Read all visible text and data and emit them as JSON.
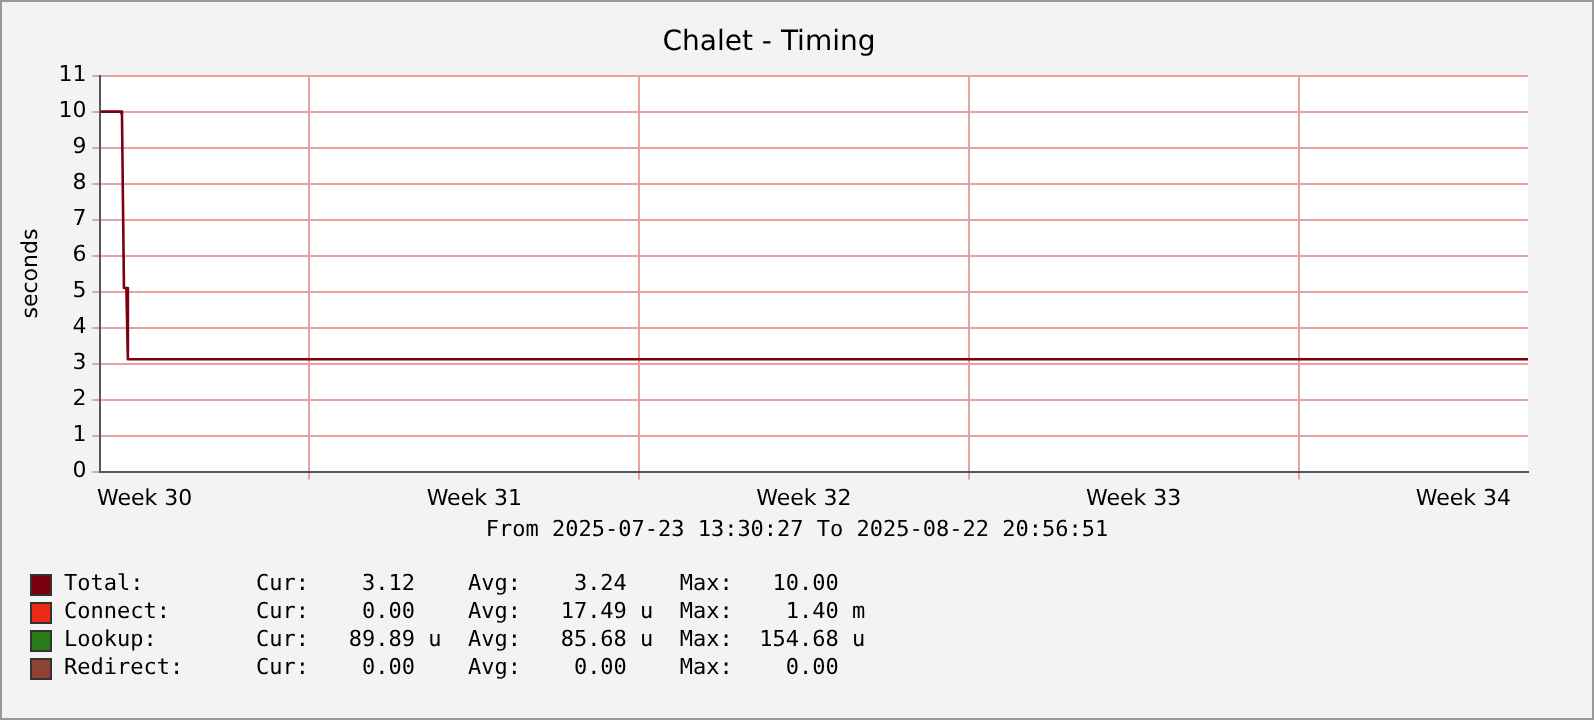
{
  "chart_data": {
    "type": "line",
    "title": "Chalet - Timing",
    "ylabel": "seconds",
    "xlim": [
      "2025-07-23T13:30",
      "2025-08-22T20:56"
    ],
    "xticks": [
      {
        "value": "2025-07-24T12:00",
        "label": "Week 30"
      },
      {
        "value": "2025-07-28",
        "label": null
      },
      {
        "value": "2025-07-31T12:00",
        "label": "Week 31"
      },
      {
        "value": "2025-08-04",
        "label": null
      },
      {
        "value": "2025-08-07T12:00",
        "label": "Week 32"
      },
      {
        "value": "2025-08-11",
        "label": null
      },
      {
        "value": "2025-08-14T12:00",
        "label": "Week 33"
      },
      {
        "value": "2025-08-18",
        "label": null
      },
      {
        "value": "2025-08-21T12:00",
        "label": "Week 34"
      }
    ],
    "ylim": [
      0,
      11
    ],
    "yticks": [
      0,
      1,
      2,
      3,
      4,
      5,
      6,
      7,
      8,
      9,
      10,
      11
    ],
    "grid": true,
    "legend": "bottom left",
    "marker": "none",
    "line_style": "solid",
    "series": [
      {
        "name": "Total:",
        "color": "#7a0010",
        "x": [
          "2025-07-23T13:30",
          "2025-07-24T00:00",
          "2025-07-24T00:30",
          "2025-07-24T01:30",
          "2025-07-24T02:45",
          "2025-07-24T03:30",
          "2025-08-22T20:56"
        ],
        "values": [
          10,
          10,
          9.9,
          5.1,
          5.1,
          3.12,
          3.12
        ]
      },
      {
        "name": "Connect:",
        "color": "#ea2a14"
      },
      {
        "name": "Lookup:",
        "color": "#2a7a1a"
      },
      {
        "name": "Redirect:",
        "color": "#8f4232"
      }
    ],
    "annotations": [
      "From 2025-07-23 13:30:27 To 2025-08-22 20:56:51",
      "Cur:    3.12    Avg:    3.24    Max:   10.00",
      "Cur:    0.00    Avg:   17.49 u  Max:    1.40 m",
      "Cur:   89.89 u  Avg:   85.68 u  Max:  154.68 u",
      "Cur:    0.00    Avg:    0.00    Max:    0.00"
    ]
  }
}
